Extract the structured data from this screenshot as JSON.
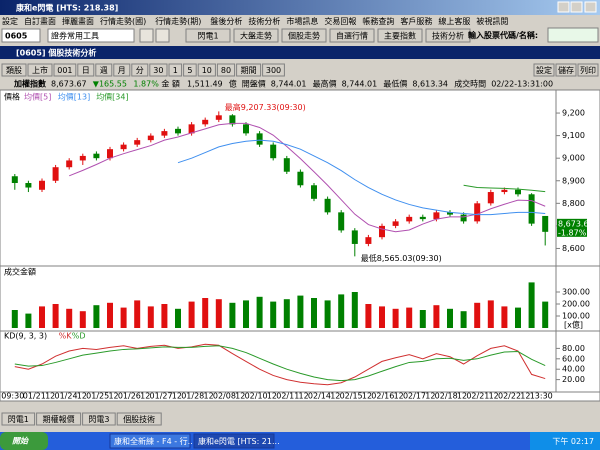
{
  "window": {
    "title": "康和e閃電 [HTS: 218.38]"
  },
  "menu": [
    "設定",
    "自訂畫面",
    "揮麗畫面",
    "行情走勢(國)",
    "行情走勢(期)",
    "盤後分析",
    "技術分析",
    "市場訊息",
    "交易回報",
    "帳務查詢",
    "客戶服務",
    "線上客服",
    "被視訊閱"
  ],
  "toolbar": {
    "code": "0605",
    "tools": "證券常用工具",
    "buttons": [
      "閃電1",
      "大盤走勢",
      "個股走勢",
      "自選行情",
      "主要指數",
      "技術分析"
    ],
    "search_label": "輸入股票代碼/名稱:"
  },
  "panel": {
    "title": "[0605] 個股技術分析",
    "controls": [
      "類股",
      "上市",
      "001",
      "日",
      "週",
      "月",
      "分",
      "30",
      "1",
      "5",
      "10",
      "80",
      "期間",
      "300"
    ],
    "actions": [
      "設定",
      "儲存",
      "列印"
    ],
    "info": [
      "加權指數",
      "8,673.67",
      "▼165.55",
      "1.87%",
      "金 額",
      "1,511.49",
      "億",
      "開盤價",
      "8,744.01",
      "最高價",
      "8,744.01",
      "最低價",
      "8,613.34",
      "成交時間",
      "02/22-13:31:00"
    ]
  },
  "chart_data": {
    "type": "candlestick",
    "legend_title": "價格",
    "up_color": "#e01010",
    "down_color": "#008000",
    "candles": [
      [
        8920,
        8930,
        8860,
        8890
      ],
      [
        8890,
        8900,
        8850,
        8870
      ],
      [
        8860,
        8910,
        8850,
        8900
      ],
      [
        8900,
        8970,
        8890,
        8960
      ],
      [
        8960,
        9000,
        8950,
        8990
      ],
      [
        8990,
        9020,
        8970,
        9010
      ],
      [
        9020,
        9030,
        8990,
        9000
      ],
      [
        9000,
        9050,
        8990,
        9040
      ],
      [
        9040,
        9070,
        9030,
        9060
      ],
      [
        9060,
        9090,
        9050,
        9080
      ],
      [
        9080,
        9110,
        9070,
        9100
      ],
      [
        9100,
        9130,
        9090,
        9120
      ],
      [
        9130,
        9140,
        9100,
        9110
      ],
      [
        9110,
        9160,
        9100,
        9150
      ],
      [
        9150,
        9180,
        9140,
        9170
      ],
      [
        9170,
        9207.33,
        9160,
        9190
      ],
      [
        9190,
        9195,
        9140,
        9150
      ],
      [
        9150,
        9160,
        9100,
        9110
      ],
      [
        9110,
        9120,
        9050,
        9060
      ],
      [
        9060,
        9070,
        8990,
        9000
      ],
      [
        9000,
        9010,
        8930,
        8940
      ],
      [
        8940,
        8950,
        8870,
        8880
      ],
      [
        8880,
        8890,
        8810,
        8820
      ],
      [
        8820,
        8830,
        8750,
        8760
      ],
      [
        8760,
        8770,
        8670,
        8680
      ],
      [
        8680,
        8690,
        8565.03,
        8620
      ],
      [
        8620,
        8660,
        8610,
        8650
      ],
      [
        8650,
        8710,
        8640,
        8700
      ],
      [
        8700,
        8730,
        8690,
        8720
      ],
      [
        8720,
        8750,
        8710,
        8740
      ],
      [
        8740,
        8750,
        8720,
        8730
      ],
      [
        8730,
        8770,
        8720,
        8760
      ],
      [
        8760,
        8770,
        8740,
        8750
      ],
      [
        8750,
        8760,
        8710,
        8720
      ],
      [
        8720,
        8810,
        8710,
        8800
      ],
      [
        8800,
        8860,
        8790,
        8850
      ],
      [
        8850,
        8870,
        8840,
        8860
      ],
      [
        8860,
        8870,
        8830,
        8840
      ],
      [
        8840,
        8845,
        8700,
        8710
      ],
      [
        8744.01,
        8744.01,
        8613.34,
        8673.67
      ]
    ],
    "ma": [
      {
        "name": "均價[5]",
        "color": "#b050b0",
        "values": [
          null,
          null,
          null,
          null,
          8922,
          8946,
          8972,
          9000,
          9020,
          9038,
          9056,
          9080,
          9094,
          9112,
          9130,
          9148,
          9154,
          9154,
          9136,
          9102,
          9052,
          8998,
          8940,
          8880,
          8816,
          8752,
          8706,
          8686,
          8674,
          8682,
          8708,
          8730,
          8740,
          8740,
          8752,
          8776,
          8796,
          8814,
          8812,
          8787
        ]
      },
      {
        "name": "均價[13]",
        "color": "#3f8fef",
        "values": [
          null,
          null,
          null,
          null,
          null,
          null,
          null,
          null,
          null,
          null,
          null,
          null,
          8980,
          9000,
          9025,
          9050,
          9065,
          9075,
          9080,
          9075,
          9060,
          9040,
          9010,
          8980,
          8945,
          8905,
          8870,
          8840,
          8815,
          8795,
          8780,
          8770,
          8760,
          8755,
          8750,
          8750,
          8755,
          8760,
          8760,
          8755
        ]
      },
      {
        "name": "均價[34]",
        "color": "#2a9a2a",
        "values": [
          null,
          null,
          null,
          null,
          null,
          null,
          null,
          null,
          null,
          null,
          null,
          null,
          null,
          null,
          null,
          null,
          null,
          null,
          null,
          null,
          null,
          null,
          null,
          null,
          null,
          null,
          null,
          null,
          null,
          null,
          null,
          null,
          null,
          8880,
          8870,
          8868,
          8866,
          8863,
          8858,
          8852
        ]
      }
    ],
    "ylim": [
      8540,
      9280
    ],
    "yticks": [
      {
        "value": 8600,
        "label": "8,600"
      },
      {
        "value": 8700,
        "label": "8,700"
      },
      {
        "value": 8800,
        "label": "8,800"
      },
      {
        "value": 8900,
        "label": "8,900"
      },
      {
        "value": 9000,
        "label": "9,000"
      },
      {
        "value": 9100,
        "label": "9,100"
      },
      {
        "value": 9200,
        "label": "9,200"
      }
    ],
    "high_label": "最高9,207.33(09:30)",
    "low_label": "最低8,565.03(09:30)",
    "last_label": "8,673.67",
    "last_change": "-1.87%",
    "volume": {
      "title": "成交金額",
      "unit": "[x億]",
      "values": [
        150,
        120,
        180,
        200,
        160,
        140,
        190,
        210,
        170,
        230,
        180,
        200,
        160,
        220,
        250,
        240,
        210,
        230,
        260,
        220,
        240,
        270,
        250,
        230,
        280,
        300,
        200,
        180,
        160,
        170,
        150,
        190,
        160,
        140,
        210,
        230,
        180,
        170,
        380,
        220
      ],
      "ylim": [
        0,
        400
      ],
      "yticks": [
        {
          "value": 100,
          "label": "100.00"
        },
        {
          "value": 200,
          "label": "200.00"
        },
        {
          "value": 300,
          "label": "300.00"
        }
      ]
    },
    "kd": {
      "title": "KD(9, 3, 3)",
      "series": [
        {
          "name": "%K",
          "color": "#d03030",
          "values": [
            45,
            40,
            50,
            65,
            75,
            80,
            78,
            82,
            85,
            80,
            84,
            86,
            80,
            83,
            88,
            86,
            70,
            55,
            40,
            28,
            20,
            15,
            12,
            10,
            14,
            25,
            40,
            55,
            62,
            68,
            60,
            70,
            64,
            50,
            66,
            80,
            85,
            75,
            30,
            22
          ]
        },
        {
          "name": "%D",
          "color": "#2a9a2a",
          "values": [
            50,
            46,
            47,
            53,
            60,
            67,
            71,
            75,
            78,
            79,
            81,
            83,
            82,
            82,
            84,
            85,
            80,
            72,
            61,
            50,
            40,
            32,
            25,
            20,
            18,
            20,
            27,
            36,
            45,
            53,
            55,
            60,
            61,
            57,
            60,
            67,
            73,
            74,
            59,
            47
          ]
        }
      ],
      "ylim": [
        0,
        100
      ],
      "yticks": [
        {
          "value": 20,
          "label": "20.00"
        },
        {
          "value": 40,
          "label": "40.00"
        },
        {
          "value": 60,
          "label": "60.00"
        },
        {
          "value": 80,
          "label": "80.00"
        }
      ]
    },
    "xlabels": [
      "09:30",
      "01/21",
      "12",
      "01/24",
      "12",
      "01/25",
      "12",
      "01/26",
      "12",
      "01/27",
      "12",
      "01/28",
      "12",
      "02/08",
      "12",
      "02/10",
      "12",
      "02/11",
      "12",
      "02/14",
      "12",
      "02/15",
      "12",
      "02/16",
      "12",
      "02/17",
      "12",
      "02/18",
      "12",
      "02/21",
      "12",
      "02/22",
      "12",
      "13:30"
    ]
  },
  "tabs": [
    "閃電1",
    "期權報價",
    "閃電3",
    "個股技術"
  ],
  "taskbar": {
    "start": "開始",
    "items": [
      "康和全新練 - F4 - 行...",
      "康和e閃電 [HTS: 21..."
    ],
    "clock": "下午 02:17"
  }
}
